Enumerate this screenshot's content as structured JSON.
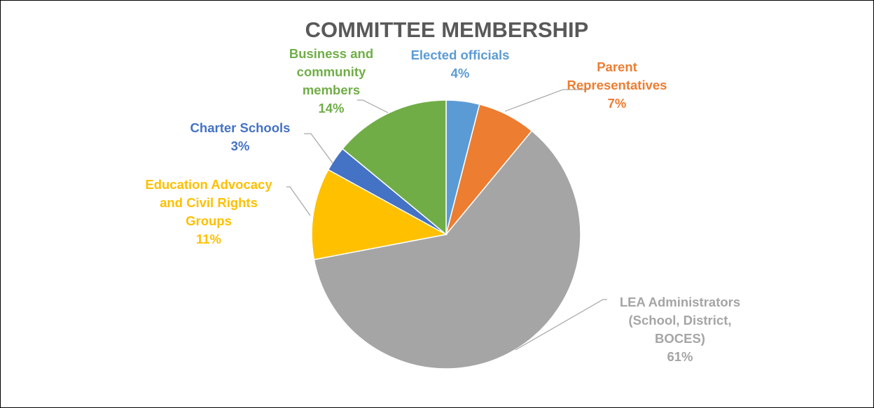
{
  "chart_data": {
    "type": "pie",
    "title": "COMMITTEE MEMBERSHIP",
    "slices": [
      {
        "label": [
          "Elected officials"
        ],
        "percent_label": "4%",
        "value": 4,
        "color": "#5b9bd5"
      },
      {
        "label": [
          "Parent",
          "Representatives"
        ],
        "percent_label": "7%",
        "value": 7,
        "color": "#ed7d31"
      },
      {
        "label": [
          "LEA Administrators",
          "(School, District,",
          "BOCES)"
        ],
        "percent_label": "61%",
        "value": 61,
        "color": "#a5a5a5"
      },
      {
        "label": [
          "Education Advocacy",
          "and Civil Rights",
          "Groups"
        ],
        "percent_label": "11%",
        "value": 11,
        "color": "#ffc000"
      },
      {
        "label": [
          "Charter Schools"
        ],
        "percent_label": "3%",
        "value": 3,
        "color": "#4472c4"
      },
      {
        "label": [
          "Business and",
          "community",
          "members"
        ],
        "percent_label": "14%",
        "value": 14,
        "color": "#70ad47"
      }
    ],
    "start_angle_deg": 0,
    "direction": "clockwise",
    "legend": "none",
    "data_labels": "outside with leader lines"
  }
}
